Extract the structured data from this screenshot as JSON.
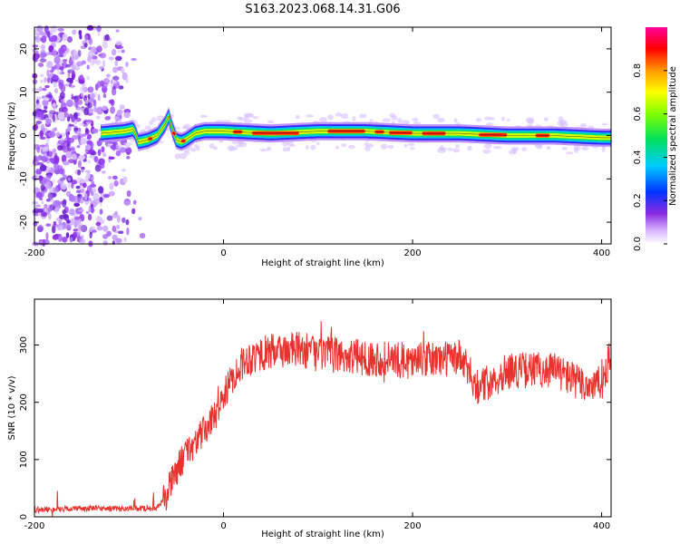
{
  "title": "S163.2023.068.14.31.G06",
  "chart_data": [
    {
      "type": "heatmap",
      "xlabel": "Height of straight line (km)",
      "ylabel": "Frequency (Hz)",
      "xlim": [
        -200,
        410
      ],
      "ylim": [
        -25,
        25
      ],
      "xticks": [
        "-200",
        "0",
        "200",
        "400"
      ],
      "yticks": [
        "-20",
        "-10",
        "0",
        "10",
        "20"
      ],
      "colorbar": {
        "label": "Normalized spectral amplitude",
        "range": [
          0,
          1
        ],
        "ticks": [
          "0.0",
          "0.2",
          "0.4",
          "0.6",
          "0.8"
        ],
        "colormap": "rainbow (white-purple-blue-cyan-green-yellow-orange-red-magenta)"
      },
      "ridge": {
        "description": "Dominant frequency ridge vs. height",
        "x": [
          -130,
          -105,
          -95,
          -90,
          -80,
          -70,
          -62,
          -58,
          -55,
          -50,
          -45,
          -40,
          -30,
          -20,
          0,
          50,
          100,
          150,
          200,
          250,
          300,
          350,
          400
        ],
        "y": [
          0.5,
          1.0,
          1.5,
          -1.5,
          -1.0,
          0.0,
          2.5,
          4.5,
          2.0,
          -1.0,
          -1.5,
          -1.0,
          0.5,
          1.0,
          1.0,
          0.5,
          1.0,
          1.0,
          0.5,
          0.5,
          0.0,
          0.0,
          -0.5
        ]
      }
    },
    {
      "type": "line",
      "xlabel": "Height of straight line (km)",
      "ylabel": "SNR (10 * v/v)",
      "xlim": [
        -200,
        410
      ],
      "ylim": [
        0,
        380
      ],
      "xticks": [
        "-200",
        "0",
        "200",
        "400"
      ],
      "yticks": [
        "0",
        "100",
        "200",
        "300"
      ],
      "color": "#e8322d",
      "x": [
        -200,
        -150,
        -100,
        -70,
        -60,
        -50,
        -40,
        -30,
        -20,
        -10,
        0,
        10,
        20,
        30,
        40,
        60,
        80,
        100,
        150,
        200,
        250,
        270,
        300,
        350,
        380,
        400,
        410
      ],
      "y": [
        12,
        15,
        14,
        15,
        40,
        80,
        110,
        130,
        150,
        175,
        210,
        245,
        270,
        280,
        285,
        290,
        292,
        285,
        278,
        272,
        278,
        225,
        255,
        258,
        230,
        232,
        285
      ]
    }
  ]
}
